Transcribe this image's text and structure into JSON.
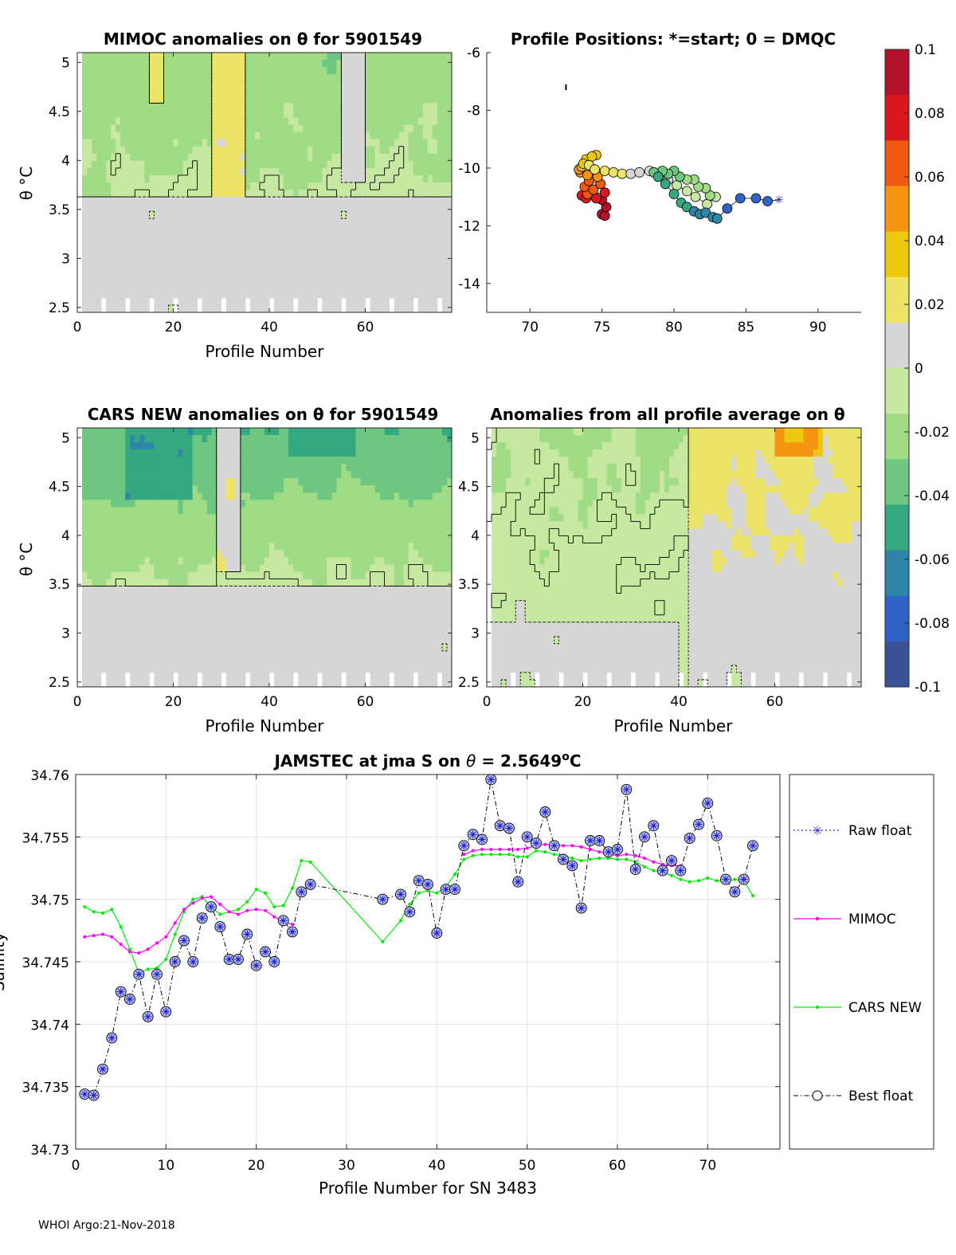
{
  "footer": "WHOI Argo:21-Nov-2018",
  "colorbar": {
    "ticks": [
      "0.1",
      "0.08",
      "0.06",
      "0.04",
      "0.02",
      "0",
      "-0.02",
      "-0.04",
      "-0.06",
      "-0.08",
      "-0.1"
    ],
    "colors": [
      "#b4122a",
      "#d8181e",
      "#ee5a12",
      "#f59410",
      "#ecc80e",
      "#ece468",
      "#d6d6d6",
      "#c6e8a0",
      "#a0dc86",
      "#6ec780",
      "#34a87e",
      "#2d86a8",
      "#2f62c4",
      "#3a5298"
    ]
  },
  "panel_mimoc": {
    "title": "MIMOC anomalies on θ  for 5901549",
    "ylabel": "θ °C",
    "xlabel": "Profile Number",
    "xticks": [
      "0",
      "20",
      "40",
      "60"
    ],
    "yticks": [
      "5",
      "4.5",
      "4",
      "3.5",
      "3",
      "2.5"
    ]
  },
  "panel_positions": {
    "title": "Profile Positions: *=start; 0 = DMQC",
    "xticks": [
      "70",
      "75",
      "80",
      "85",
      "90"
    ],
    "yticks": [
      "-6",
      "-8",
      "-10",
      "-12",
      "-14"
    ]
  },
  "panel_cars": {
    "title": "CARS NEW anomalies on θ for 5901549",
    "ylabel": "θ °C",
    "xlabel": "Profile Number",
    "xticks": [
      "0",
      "20",
      "40",
      "60"
    ],
    "yticks": [
      "5",
      "4.5",
      "4",
      "3.5",
      "3",
      "2.5"
    ]
  },
  "panel_avg": {
    "title": "Anomalies from all profile average on θ",
    "xlabel": "Profile Number",
    "xticks": [
      "0",
      "20",
      "40",
      "60"
    ],
    "yticks": [
      "5",
      "4.5",
      "4",
      "3.5",
      "3",
      "2.5"
    ]
  },
  "chart_data": [
    {
      "type": "heatmap",
      "title": "MIMOC anomalies on θ  for 5901549",
      "xlabel": "Profile Number",
      "ylabel": "θ °C",
      "xlim": [
        0,
        78
      ],
      "ylim": [
        2.45,
        5.1
      ],
      "anomaly_range": [
        -0.1,
        0.1
      ],
      "description": "mostly -0.03 to +0.03 anomaly; green (negative) near top, gray near bottom"
    },
    {
      "type": "scatter",
      "title": "Profile Positions: *=start; 0 = DMQC",
      "xlim": [
        67,
        93
      ],
      "ylim": [
        -15,
        -6
      ],
      "points": [
        [
          87.3,
          -11.1
        ],
        [
          86.5,
          -11.15
        ],
        [
          85.7,
          -11.05
        ],
        [
          84.6,
          -11.05
        ],
        [
          83.7,
          -11.4
        ],
        [
          83.0,
          -11.75
        ],
        [
          82.7,
          -11.7
        ],
        [
          82.2,
          -11.55
        ],
        [
          81.8,
          -11.6
        ],
        [
          81.4,
          -11.5
        ],
        [
          80.9,
          -11.35
        ],
        [
          80.5,
          -11.2
        ],
        [
          80.0,
          -10.9
        ],
        [
          79.4,
          -10.55
        ],
        [
          78.9,
          -10.3
        ],
        [
          78.6,
          -10.15
        ],
        [
          79.2,
          -10.1
        ],
        [
          79.6,
          -10.2
        ],
        [
          80.0,
          -10.1
        ],
        [
          80.4,
          -10.3
        ],
        [
          80.9,
          -10.4
        ],
        [
          81.4,
          -10.4
        ],
        [
          81.7,
          -10.65
        ],
        [
          82.2,
          -10.7
        ],
        [
          82.5,
          -10.95
        ],
        [
          82.9,
          -11.0
        ],
        [
          82.3,
          -11.25
        ],
        [
          81.5,
          -11.0
        ],
        [
          80.9,
          -10.8
        ],
        [
          80.2,
          -10.6
        ],
        [
          79.6,
          -10.4
        ],
        [
          79.0,
          -10.2
        ],
        [
          78.3,
          -10.1
        ],
        [
          77.6,
          -10.15
        ],
        [
          77.0,
          -10.2
        ],
        [
          76.4,
          -10.2
        ],
        [
          75.8,
          -10.15
        ],
        [
          75.2,
          -10.1
        ],
        [
          74.5,
          -10.05
        ],
        [
          74.1,
          -9.9
        ],
        [
          73.7,
          -9.85
        ],
        [
          74.3,
          -9.6
        ],
        [
          73.9,
          -9.7
        ],
        [
          74.6,
          -9.55
        ],
        [
          73.6,
          -9.95
        ],
        [
          73.4,
          -10.05
        ],
        [
          74.0,
          -10.25
        ],
        [
          74.7,
          -10.3
        ],
        [
          73.5,
          -10.15
        ],
        [
          74.1,
          -10.45
        ],
        [
          74.9,
          -10.55
        ],
        [
          73.8,
          -10.65
        ],
        [
          74.4,
          -10.75
        ],
        [
          74.0,
          -10.9
        ],
        [
          75.2,
          -10.85
        ],
        [
          74.6,
          -11.05
        ],
        [
          73.9,
          -11.05
        ],
        [
          73.6,
          -10.95
        ],
        [
          74.3,
          -10.9
        ],
        [
          75.0,
          -11.1
        ],
        [
          75.3,
          -11.35
        ],
        [
          75.2,
          -11.65
        ],
        [
          75.0,
          -11.6
        ]
      ],
      "color_by": "anomaly (-0.1 to 0.1)"
    },
    {
      "type": "heatmap",
      "title": "CARS NEW anomalies on θ for 5901549",
      "xlabel": "Profile Number",
      "ylabel": "θ °C",
      "xlim": [
        0,
        78
      ],
      "ylim": [
        2.45,
        5.1
      ],
      "anomaly_range": [
        -0.1,
        0.1
      ],
      "description": "stronger negative (teal/blue) near top at profiles 10-25 and 45-55"
    },
    {
      "type": "heatmap",
      "title": "Anomalies from all profile average on θ",
      "xlabel": "Profile Number",
      "xlim": [
        0,
        78
      ],
      "ylim": [
        2.45,
        5.1
      ],
      "anomaly_range": [
        -0.1,
        0.1
      ],
      "description": "negative (green) for profiles 0-40, positive (yellow/orange) for profiles 44-78"
    },
    {
      "type": "line",
      "title": "JAMSTEC at jma S on θ = 2.5649°C",
      "xlabel": "Profile Number for SN 3483",
      "ylabel": "Salinity",
      "xlim": [
        0,
        78
      ],
      "ylim": [
        34.73,
        34.76
      ],
      "xticks": [
        "0",
        "10",
        "20",
        "30",
        "40",
        "50",
        "60",
        "70"
      ],
      "yticks": [
        "34.76",
        "34.755",
        "34.75",
        "34.745",
        "34.74",
        "34.735",
        "34.73"
      ],
      "legend": [
        "Raw float",
        "MIMOC",
        "CARS NEW",
        "Best float"
      ],
      "series": [
        {
          "name": "Best float",
          "x": [
            1,
            2,
            3,
            4,
            5,
            6,
            7,
            8,
            9,
            10,
            11,
            12,
            13,
            14,
            15,
            16,
            17,
            18,
            19,
            20,
            21,
            22,
            23,
            24,
            25,
            26,
            34,
            36,
            37,
            38,
            39,
            40,
            41,
            42,
            43,
            44,
            45,
            46,
            47,
            48,
            49,
            50,
            51,
            52,
            53,
            54,
            55,
            56,
            57,
            58,
            59,
            60,
            61,
            62,
            63,
            64,
            65,
            66,
            67,
            68,
            69,
            70,
            71,
            72,
            73,
            74,
            75
          ],
          "y": [
            34.7344,
            34.7343,
            34.7364,
            34.7389,
            34.7426,
            34.742,
            34.744,
            34.7406,
            34.744,
            34.741,
            34.745,
            34.7467,
            34.745,
            34.7485,
            34.7494,
            34.7478,
            34.7452,
            34.7452,
            34.7472,
            34.7447,
            34.7458,
            34.745,
            34.7483,
            34.7474,
            34.7506,
            34.7512,
            34.75,
            34.7504,
            34.749,
            34.7515,
            34.7512,
            34.7473,
            34.7508,
            34.7508,
            34.7543,
            34.7552,
            34.7548,
            34.7596,
            34.7559,
            34.7557,
            34.7514,
            34.755,
            34.7545,
            34.757,
            34.7543,
            34.7532,
            34.7527,
            34.7493,
            34.7547,
            34.7547,
            34.7538,
            34.754,
            34.7588,
            34.7524,
            34.755,
            34.7559,
            34.7523,
            34.7531,
            34.7523,
            34.7549,
            34.756,
            34.7577,
            34.7551,
            34.7516,
            34.7506,
            34.7516,
            34.7543
          ]
        },
        {
          "name": "MIMOC",
          "x": [
            1,
            2,
            3,
            4,
            5,
            6,
            7,
            8,
            9,
            10,
            11,
            12,
            13,
            14,
            15,
            16,
            17,
            18,
            19,
            20,
            21,
            22,
            23,
            24,
            43,
            44,
            45,
            46,
            47,
            48,
            49,
            50,
            51,
            52,
            53,
            54,
            55,
            56,
            57,
            58,
            59,
            60,
            61,
            62,
            63,
            64,
            65,
            66,
            67
          ],
          "y": [
            34.747,
            34.7471,
            34.7472,
            34.747,
            34.7464,
            34.7458,
            34.7457,
            34.746,
            34.7465,
            34.747,
            34.7481,
            34.7492,
            34.7497,
            34.7501,
            34.7502,
            34.7496,
            34.749,
            34.7488,
            34.7491,
            34.7492,
            34.7491,
            34.7486,
            34.7482,
            34.748,
            34.7536,
            34.7539,
            34.754,
            34.754,
            34.754,
            34.754,
            34.754,
            34.7541,
            34.7543,
            34.7544,
            34.7544,
            34.7543,
            34.7543,
            34.7542,
            34.754,
            34.7538,
            34.7536,
            34.7535,
            34.7536,
            34.7535,
            34.7533,
            34.753,
            34.7528,
            34.7527,
            34.7527
          ]
        },
        {
          "name": "CARS NEW",
          "x": [
            1,
            2,
            3,
            4,
            5,
            6,
            7,
            8,
            9,
            10,
            11,
            12,
            13,
            14,
            15,
            16,
            17,
            18,
            19,
            20,
            21,
            22,
            23,
            24,
            25,
            26,
            34,
            36,
            37,
            38,
            39,
            40,
            41,
            42,
            43,
            44,
            45,
            46,
            47,
            48,
            49,
            50,
            51,
            52,
            53,
            54,
            55,
            56,
            57,
            58,
            59,
            60,
            61,
            62,
            63,
            64,
            65,
            66,
            67,
            68,
            69,
            70,
            71,
            72,
            73,
            74,
            75
          ],
          "y": [
            34.7494,
            34.749,
            34.7489,
            34.7492,
            34.7478,
            34.746,
            34.7441,
            34.7444,
            34.7445,
            34.7452,
            34.7472,
            34.749,
            34.75,
            34.7502,
            34.7494,
            34.7488,
            34.749,
            34.7492,
            34.7498,
            34.7508,
            34.7505,
            34.7494,
            34.7495,
            34.7509,
            34.7531,
            34.753,
            34.7466,
            34.7483,
            34.7496,
            34.7505,
            34.7507,
            34.7505,
            34.751,
            34.752,
            34.7532,
            34.7535,
            34.7536,
            34.7536,
            34.7536,
            34.7536,
            34.7534,
            34.7534,
            34.7539,
            34.7538,
            34.7536,
            34.7535,
            34.7533,
            34.7531,
            34.7532,
            34.7533,
            34.7533,
            34.7532,
            34.7532,
            34.753,
            34.7526,
            34.7523,
            34.7522,
            34.7519,
            34.7516,
            34.7514,
            34.7515,
            34.7517,
            34.7515,
            34.7514,
            34.7516,
            34.7515,
            34.7503
          ]
        }
      ]
    }
  ],
  "bottom_title_parts": {
    "prefix": "JAMSTEC at jma S on ",
    "theta": "θ",
    "eq": " = 2.5649",
    "deg": "o",
    "unit": "C"
  },
  "bottom_ylabel": "Salinity",
  "bottom_xlabel": "Profile Number for SN 3483",
  "bottom_legend": [
    "Raw float",
    "MIMOC",
    "CARS NEW",
    "Best float"
  ]
}
